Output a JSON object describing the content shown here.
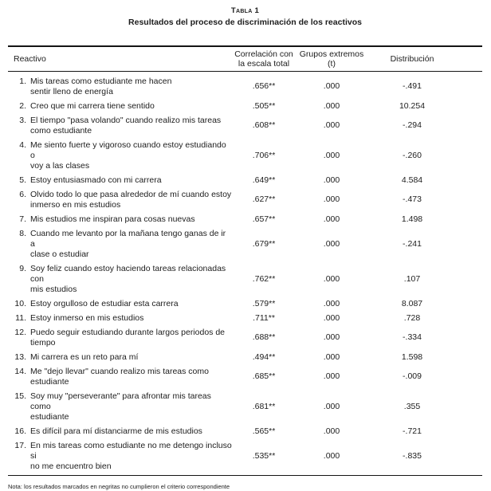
{
  "doc": {
    "table_label": "Tabla 1",
    "table_title": "Resultados del proceso de discriminación de los reactivos",
    "note": "Nota: los resultados marcados en negritas no cumplieron el criterio correspondiente"
  },
  "table": {
    "columns": {
      "reactivo": "Reactivo",
      "correlacion": "Correlación con\nla escala total",
      "grupos": "Grupos extremos\n(t)",
      "distribucion": "Distribución"
    },
    "rows": [
      {
        "num": "1.",
        "text": "Mis tareas como estudiante me hacen\nsentir lleno de energía",
        "correlacion": ".656**",
        "t": ".000",
        "distribucion": "-.491"
      },
      {
        "num": "2.",
        "text": "Creo que mi carrera tiene sentido",
        "correlacion": ".505**",
        "t": ".000",
        "distribucion": "10.254"
      },
      {
        "num": "3.",
        "text": "El tiempo \"pasa volando\" cuando realizo mis tareas\ncomo estudiante",
        "correlacion": ".608**",
        "t": ".000",
        "distribucion": "-.294"
      },
      {
        "num": "4.",
        "text": "Me siento fuerte y vigoroso cuando estoy estudiando o\nvoy a las clases",
        "correlacion": ".706**",
        "t": ".000",
        "distribucion": "-.260"
      },
      {
        "num": "5.",
        "text": "Estoy entusiasmado con mi carrera",
        "correlacion": ".649**",
        "t": ".000",
        "distribucion": "4.584"
      },
      {
        "num": "6.",
        "text": "Olvido todo lo que pasa alrededor de mí cuando estoy\ninmerso en mis estudios",
        "correlacion": ".627**",
        "t": ".000",
        "distribucion": "-.473"
      },
      {
        "num": "7.",
        "text": "Mis estudios me inspiran para cosas nuevas",
        "correlacion": ".657**",
        "t": ".000",
        "distribucion": "1.498"
      },
      {
        "num": "8.",
        "text": "Cuando me levanto por la mañana tengo ganas de ir a\nclase o estudiar",
        "correlacion": ".679**",
        "t": ".000",
        "distribucion": "-.241"
      },
      {
        "num": "9.",
        "text": "Soy feliz cuando estoy haciendo tareas relacionadas con\nmis estudios",
        "correlacion": ".762**",
        "t": ".000",
        "distribucion": ".107"
      },
      {
        "num": "10.",
        "text": "Estoy orgulloso de estudiar esta carrera",
        "correlacion": ".579**",
        "t": ".000",
        "distribucion": "8.087"
      },
      {
        "num": "11.",
        "text": "Estoy inmerso en mis estudios",
        "correlacion": ".711**",
        "t": ".000",
        "distribucion": ".728"
      },
      {
        "num": "12.",
        "text": "Puedo seguir estudiando durante largos periodos de\ntiempo",
        "correlacion": ".688**",
        "t": ".000",
        "distribucion": "-.334"
      },
      {
        "num": "13.",
        "text": "Mi carrera es un reto para mí",
        "correlacion": ".494**",
        "t": ".000",
        "distribucion": "1.598"
      },
      {
        "num": "14.",
        "text": "Me \"dejo llevar\" cuando realizo mis tareas como\nestudiante",
        "correlacion": ".685**",
        "t": ".000",
        "distribucion": "-.009"
      },
      {
        "num": "15.",
        "text": "Soy muy \"perseverante\" para afrontar mis tareas como\nestudiante",
        "correlacion": ".681**",
        "t": ".000",
        "distribucion": ".355"
      },
      {
        "num": "16.",
        "text": "Es difícil para mí distanciarme de mis estudios",
        "correlacion": ".565**",
        "t": ".000",
        "distribucion": "-.721"
      },
      {
        "num": "17.",
        "text": "En mis tareas como estudiante no me detengo incluso si\nno me encuentro bien",
        "correlacion": ".535**",
        "t": ".000",
        "distribucion": "-.835"
      }
    ]
  }
}
